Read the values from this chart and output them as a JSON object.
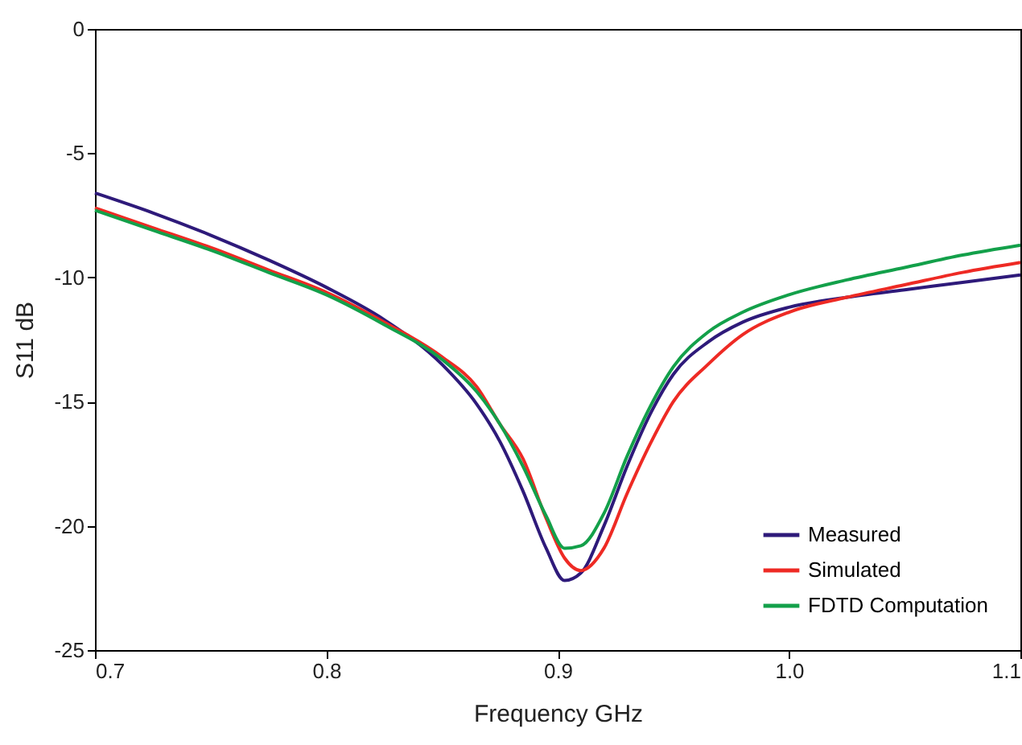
{
  "chart_data": {
    "type": "line",
    "xlabel": "Frequency GHz",
    "ylabel": "S11 dB",
    "x": [
      0.7,
      0.725,
      0.75,
      0.775,
      0.8,
      0.825,
      0.85,
      0.865,
      0.875,
      0.885,
      0.895,
      0.903,
      0.91,
      0.92,
      0.93,
      0.94,
      0.95,
      0.965,
      0.98,
      1.0,
      1.025,
      1.05,
      1.075,
      1.1
    ],
    "series": [
      {
        "name": "Measured",
        "color": "#2e1a7a",
        "values": [
          -6.6,
          -7.4,
          -8.3,
          -9.3,
          -10.4,
          -11.7,
          -13.5,
          -15.1,
          -16.6,
          -18.6,
          -20.9,
          -22.2,
          -21.9,
          -20.0,
          -17.6,
          -15.5,
          -13.9,
          -12.6,
          -11.8,
          -11.2,
          -10.8,
          -10.5,
          -10.2,
          -9.9
        ]
      },
      {
        "name": "Simulated",
        "color": "#ee2a24",
        "values": [
          -7.2,
          -8.0,
          -8.8,
          -9.7,
          -10.6,
          -11.8,
          -13.2,
          -14.4,
          -15.9,
          -17.3,
          -19.7,
          -21.3,
          -21.8,
          -20.9,
          -18.7,
          -16.7,
          -15.0,
          -13.5,
          -12.3,
          -11.4,
          -10.8,
          -10.3,
          -9.8,
          -9.4
        ]
      },
      {
        "name": "FDTD Computation",
        "color": "#13a04a",
        "values": [
          -7.3,
          -8.1,
          -8.9,
          -9.8,
          -10.7,
          -11.9,
          -13.3,
          -14.6,
          -15.9,
          -17.6,
          -19.6,
          -20.9,
          -20.8,
          -19.5,
          -17.2,
          -15.2,
          -13.6,
          -12.2,
          -11.4,
          -10.7,
          -10.1,
          -9.6,
          -9.1,
          -8.7
        ]
      }
    ],
    "xlim": [
      0.7,
      1.1
    ],
    "xticks": [
      {
        "value": 0.7,
        "label": "0.7"
      },
      {
        "value": 0.8,
        "label": "0.8"
      },
      {
        "value": 0.9,
        "label": "0.9"
      },
      {
        "value": 1.0,
        "label": "1.0"
      },
      {
        "value": 1.1,
        "label": "1.1"
      }
    ],
    "ylim": [
      -25,
      0
    ],
    "yticks": [
      -25,
      -20,
      -15,
      -10,
      -5,
      0
    ],
    "grid": false,
    "legend": "bottom right",
    "marker": "none",
    "line_style": "solid"
  }
}
